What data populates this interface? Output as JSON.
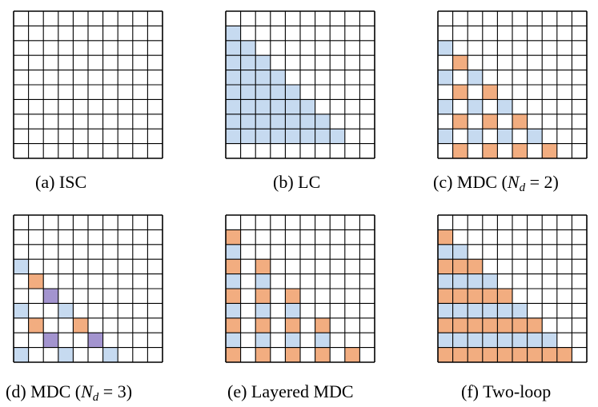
{
  "colors": {
    "blue": "#c6daf0",
    "orange": "#f2ad80",
    "purple": "#a394cf",
    "gridline": "#000000"
  },
  "panels": [
    {
      "caption": {
        "prefix": "(a) ISC",
        "math": "",
        "tail": ""
      },
      "cells": []
    },
    {
      "caption": {
        "prefix": "(b) LC",
        "math": "",
        "tail": ""
      },
      "cells": [
        [
          1,
          0,
          "b"
        ],
        [
          2,
          0,
          "b"
        ],
        [
          2,
          1,
          "b"
        ],
        [
          3,
          0,
          "b"
        ],
        [
          3,
          1,
          "b"
        ],
        [
          3,
          2,
          "b"
        ],
        [
          4,
          0,
          "b"
        ],
        [
          4,
          1,
          "b"
        ],
        [
          4,
          2,
          "b"
        ],
        [
          4,
          3,
          "b"
        ],
        [
          5,
          0,
          "b"
        ],
        [
          5,
          1,
          "b"
        ],
        [
          5,
          2,
          "b"
        ],
        [
          5,
          3,
          "b"
        ],
        [
          5,
          4,
          "b"
        ],
        [
          6,
          0,
          "b"
        ],
        [
          6,
          1,
          "b"
        ],
        [
          6,
          2,
          "b"
        ],
        [
          6,
          3,
          "b"
        ],
        [
          6,
          4,
          "b"
        ],
        [
          6,
          5,
          "b"
        ],
        [
          7,
          0,
          "b"
        ],
        [
          7,
          1,
          "b"
        ],
        [
          7,
          2,
          "b"
        ],
        [
          7,
          3,
          "b"
        ],
        [
          7,
          4,
          "b"
        ],
        [
          7,
          5,
          "b"
        ],
        [
          7,
          6,
          "b"
        ],
        [
          8,
          0,
          "b"
        ],
        [
          8,
          1,
          "b"
        ],
        [
          8,
          2,
          "b"
        ],
        [
          8,
          3,
          "b"
        ],
        [
          8,
          4,
          "b"
        ],
        [
          8,
          5,
          "b"
        ],
        [
          8,
          6,
          "b"
        ],
        [
          8,
          7,
          "b"
        ]
      ]
    },
    {
      "caption": {
        "prefix": "(c) MDC (",
        "math": "N",
        "sub": "d",
        "tail": " = 2)"
      },
      "cells": [
        [
          2,
          0,
          "b"
        ],
        [
          3,
          1,
          "o"
        ],
        [
          4,
          0,
          "b"
        ],
        [
          4,
          2,
          "b"
        ],
        [
          5,
          1,
          "o"
        ],
        [
          5,
          3,
          "o"
        ],
        [
          6,
          0,
          "b"
        ],
        [
          6,
          2,
          "b"
        ],
        [
          6,
          4,
          "b"
        ],
        [
          7,
          1,
          "o"
        ],
        [
          7,
          3,
          "o"
        ],
        [
          7,
          5,
          "o"
        ],
        [
          8,
          0,
          "b"
        ],
        [
          8,
          2,
          "b"
        ],
        [
          8,
          4,
          "b"
        ],
        [
          8,
          6,
          "b"
        ],
        [
          9,
          1,
          "o"
        ],
        [
          9,
          3,
          "o"
        ],
        [
          9,
          5,
          "o"
        ],
        [
          9,
          7,
          "o"
        ]
      ]
    },
    {
      "caption": {
        "prefix": "(d) MDC (",
        "math": "N",
        "sub": "d",
        "tail": " = 3)"
      },
      "cells": [
        [
          3,
          0,
          "b"
        ],
        [
          4,
          1,
          "o"
        ],
        [
          5,
          2,
          "p"
        ],
        [
          6,
          0,
          "b"
        ],
        [
          6,
          3,
          "b"
        ],
        [
          7,
          1,
          "o"
        ],
        [
          7,
          4,
          "o"
        ],
        [
          8,
          2,
          "p"
        ],
        [
          8,
          5,
          "p"
        ],
        [
          9,
          0,
          "b"
        ],
        [
          9,
          3,
          "b"
        ],
        [
          9,
          6,
          "b"
        ]
      ]
    },
    {
      "caption": {
        "prefix": "(e) Layered MDC",
        "math": "",
        "tail": ""
      },
      "cells": [
        [
          1,
          0,
          "o"
        ],
        [
          2,
          0,
          "b"
        ],
        [
          3,
          0,
          "o"
        ],
        [
          3,
          2,
          "o"
        ],
        [
          4,
          0,
          "b"
        ],
        [
          4,
          2,
          "b"
        ],
        [
          5,
          0,
          "o"
        ],
        [
          5,
          2,
          "o"
        ],
        [
          5,
          4,
          "o"
        ],
        [
          6,
          0,
          "b"
        ],
        [
          6,
          2,
          "b"
        ],
        [
          6,
          4,
          "b"
        ],
        [
          7,
          0,
          "o"
        ],
        [
          7,
          2,
          "o"
        ],
        [
          7,
          4,
          "o"
        ],
        [
          7,
          6,
          "o"
        ],
        [
          8,
          0,
          "b"
        ],
        [
          8,
          2,
          "b"
        ],
        [
          8,
          4,
          "b"
        ],
        [
          8,
          6,
          "b"
        ],
        [
          9,
          0,
          "o"
        ],
        [
          9,
          2,
          "o"
        ],
        [
          9,
          4,
          "o"
        ],
        [
          9,
          6,
          "o"
        ],
        [
          9,
          8,
          "o"
        ]
      ]
    },
    {
      "caption": {
        "prefix": "(f) Two-loop",
        "math": "",
        "tail": ""
      },
      "cells": [
        [
          1,
          0,
          "o"
        ],
        [
          2,
          0,
          "b"
        ],
        [
          2,
          1,
          "b"
        ],
        [
          3,
          0,
          "o"
        ],
        [
          3,
          1,
          "o"
        ],
        [
          3,
          2,
          "o"
        ],
        [
          4,
          0,
          "b"
        ],
        [
          4,
          1,
          "b"
        ],
        [
          4,
          2,
          "b"
        ],
        [
          4,
          3,
          "b"
        ],
        [
          5,
          0,
          "o"
        ],
        [
          5,
          1,
          "o"
        ],
        [
          5,
          2,
          "o"
        ],
        [
          5,
          3,
          "o"
        ],
        [
          5,
          4,
          "o"
        ],
        [
          6,
          0,
          "b"
        ],
        [
          6,
          1,
          "b"
        ],
        [
          6,
          2,
          "b"
        ],
        [
          6,
          3,
          "b"
        ],
        [
          6,
          4,
          "b"
        ],
        [
          6,
          5,
          "b"
        ],
        [
          7,
          0,
          "o"
        ],
        [
          7,
          1,
          "o"
        ],
        [
          7,
          2,
          "o"
        ],
        [
          7,
          3,
          "o"
        ],
        [
          7,
          4,
          "o"
        ],
        [
          7,
          5,
          "o"
        ],
        [
          7,
          6,
          "o"
        ],
        [
          8,
          0,
          "b"
        ],
        [
          8,
          1,
          "b"
        ],
        [
          8,
          2,
          "b"
        ],
        [
          8,
          3,
          "b"
        ],
        [
          8,
          4,
          "b"
        ],
        [
          8,
          5,
          "b"
        ],
        [
          8,
          6,
          "b"
        ],
        [
          8,
          7,
          "b"
        ],
        [
          9,
          0,
          "o"
        ],
        [
          9,
          1,
          "o"
        ],
        [
          9,
          2,
          "o"
        ],
        [
          9,
          3,
          "o"
        ],
        [
          9,
          4,
          "o"
        ],
        [
          9,
          5,
          "o"
        ],
        [
          9,
          6,
          "o"
        ],
        [
          9,
          7,
          "o"
        ],
        [
          9,
          8,
          "o"
        ]
      ]
    }
  ]
}
